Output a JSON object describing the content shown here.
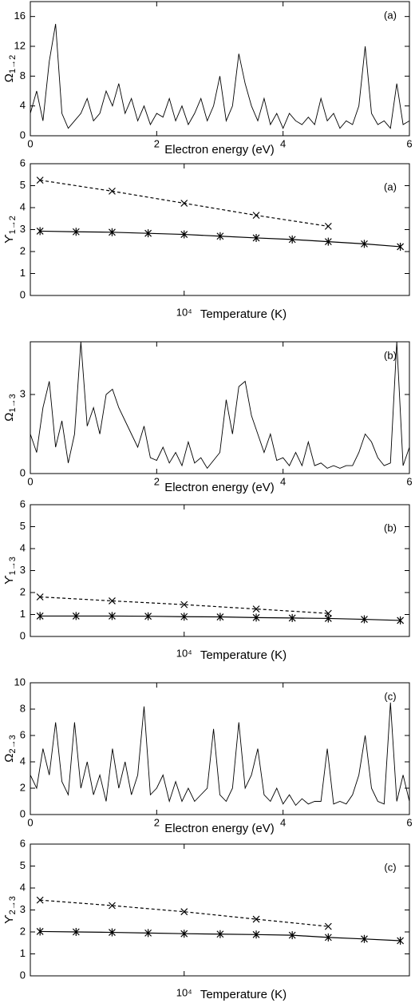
{
  "chart_data": [
    {
      "type": "line",
      "panel_label": "(a)",
      "ylabel": {
        "symbol": "Ω",
        "subscript": "1→2"
      },
      "xlabel": "Electron energy (eV)",
      "xlim": [
        0,
        6
      ],
      "xticks": [
        0,
        2,
        4,
        6
      ],
      "ylim": [
        0,
        18
      ],
      "yticks": [
        0,
        4,
        8,
        12,
        16
      ],
      "log_x": false,
      "x": [
        0,
        0.1,
        0.2,
        0.3,
        0.4,
        0.5,
        0.6,
        0.7,
        0.8,
        0.9,
        1,
        1.1,
        1.2,
        1.3,
        1.4,
        1.5,
        1.6,
        1.7,
        1.8,
        1.9,
        2,
        2.1,
        2.2,
        2.3,
        2.4,
        2.5,
        2.6,
        2.7,
        2.8,
        2.9,
        3,
        3.1,
        3.2,
        3.3,
        3.4,
        3.5,
        3.6,
        3.7,
        3.8,
        3.9,
        4,
        4.1,
        4.2,
        4.3,
        4.4,
        4.5,
        4.6,
        4.7,
        4.8,
        4.9,
        5,
        5.1,
        5.2,
        5.3,
        5.4,
        5.5,
        5.6,
        5.7,
        5.8,
        5.9,
        6
      ],
      "series": [
        {
          "color": "#000000",
          "dash": false,
          "marker": "none",
          "values": [
            3,
            6,
            2,
            10,
            15,
            3,
            1,
            2,
            3,
            5,
            2,
            3,
            6,
            4,
            7,
            3,
            5,
            2,
            4,
            1.5,
            3,
            2.5,
            5,
            2,
            4,
            1.5,
            3,
            5,
            2,
            4,
            8,
            2,
            4,
            11,
            7,
            4,
            2,
            5,
            1.5,
            3,
            1,
            3,
            2,
            1.5,
            2.5,
            1.5,
            5,
            2,
            3,
            1,
            2,
            1.5,
            4,
            12,
            3,
            1.5,
            2,
            1,
            7,
            1.5,
            2
          ]
        }
      ]
    },
    {
      "type": "line",
      "panel_label": "(a)",
      "ylabel": {
        "symbol": "ϒ",
        "subscript": "1→2"
      },
      "xlabel": "Temperature (K)",
      "xlim": [
        1400,
        178000
      ],
      "xticks": [
        {
          "value": 10000,
          "label": "10⁴"
        }
      ],
      "ylim": [
        0,
        6
      ],
      "yticks": [
        0,
        1,
        2,
        3,
        4,
        5,
        6
      ],
      "log_x": true,
      "series": [
        {
          "color": "#000000",
          "dash": true,
          "marker": "x",
          "x": [
            1585,
            3981,
            10000,
            25120,
            63100
          ],
          "values": [
            5.25,
            4.75,
            4.2,
            3.65,
            3.15
          ]
        },
        {
          "color": "#000000",
          "dash": false,
          "marker": "star",
          "x": [
            1585,
            2512,
            3981,
            6310,
            10000,
            15850,
            25120,
            39810,
            63100,
            100000,
            158500
          ],
          "values": [
            2.93,
            2.9,
            2.88,
            2.83,
            2.78,
            2.7,
            2.62,
            2.55,
            2.45,
            2.35,
            2.22
          ]
        }
      ]
    },
    {
      "type": "line",
      "panel_label": "(b)",
      "ylabel": {
        "symbol": "Ω",
        "subscript": "1→3"
      },
      "xlabel": "Electron energy (eV)",
      "xlim": [
        0,
        6
      ],
      "xticks": [
        0,
        2,
        4,
        6
      ],
      "ylim": [
        0,
        5
      ],
      "yticks": [
        0,
        3
      ],
      "log_x": false,
      "x": [
        0,
        0.1,
        0.2,
        0.3,
        0.4,
        0.5,
        0.6,
        0.7,
        0.8,
        0.9,
        1,
        1.1,
        1.2,
        1.3,
        1.4,
        1.5,
        1.6,
        1.7,
        1.8,
        1.9,
        2,
        2.1,
        2.2,
        2.3,
        2.4,
        2.5,
        2.6,
        2.7,
        2.8,
        2.9,
        3,
        3.1,
        3.2,
        3.3,
        3.4,
        3.5,
        3.6,
        3.7,
        3.8,
        3.9,
        4,
        4.1,
        4.2,
        4.3,
        4.4,
        4.5,
        4.6,
        4.7,
        4.8,
        4.9,
        5,
        5.1,
        5.2,
        5.3,
        5.4,
        5.5,
        5.6,
        5.7,
        5.8,
        5.9,
        6
      ],
      "series": [
        {
          "color": "#000000",
          "dash": false,
          "marker": "none",
          "values": [
            1.5,
            0.8,
            2.5,
            3.5,
            1,
            2,
            0.4,
            1.5,
            5,
            1.8,
            2.5,
            1.5,
            3,
            3.2,
            2.5,
            2,
            1.5,
            1,
            1.8,
            0.6,
            0.5,
            1,
            0.4,
            0.8,
            0.3,
            1.2,
            0.4,
            0.6,
            0.2,
            0.5,
            0.8,
            2.8,
            1.5,
            3.3,
            3.5,
            2.2,
            1.5,
            0.8,
            1.5,
            0.5,
            0.6,
            0.3,
            0.8,
            0.3,
            1.2,
            0.3,
            0.4,
            0.2,
            0.3,
            0.2,
            0.3,
            0.3,
            0.8,
            1.5,
            1.2,
            0.6,
            0.3,
            0.4,
            5,
            0.3,
            1
          ]
        }
      ]
    },
    {
      "type": "line",
      "panel_label": "(b)",
      "ylabel": {
        "symbol": "ϒ",
        "subscript": "1→3"
      },
      "xlabel": "Temperature (K)",
      "xlim": [
        1400,
        178000
      ],
      "xticks": [
        {
          "value": 10000,
          "label": "10⁴"
        }
      ],
      "ylim": [
        0,
        6
      ],
      "yticks": [
        0,
        1,
        2,
        3,
        4,
        5,
        6
      ],
      "log_x": true,
      "series": [
        {
          "color": "#000000",
          "dash": true,
          "marker": "x",
          "x": [
            1585,
            3981,
            10000,
            25120,
            63100
          ],
          "values": [
            1.8,
            1.62,
            1.45,
            1.25,
            1.05
          ]
        },
        {
          "color": "#000000",
          "dash": false,
          "marker": "star",
          "x": [
            1585,
            2512,
            3981,
            6310,
            10000,
            15850,
            25120,
            39810,
            63100,
            100000,
            158500
          ],
          "values": [
            0.93,
            0.93,
            0.93,
            0.92,
            0.9,
            0.89,
            0.86,
            0.84,
            0.82,
            0.78,
            0.73
          ]
        }
      ]
    },
    {
      "type": "line",
      "panel_label": "(c)",
      "ylabel": {
        "symbol": "Ω",
        "subscript": "2→3"
      },
      "xlabel": "Electron energy (eV)",
      "xlim": [
        0,
        6
      ],
      "xticks": [
        0,
        2,
        4,
        6
      ],
      "ylim": [
        0,
        10
      ],
      "yticks": [
        0,
        2,
        4,
        6,
        8,
        10
      ],
      "log_x": false,
      "x": [
        0,
        0.1,
        0.2,
        0.3,
        0.4,
        0.5,
        0.6,
        0.7,
        0.8,
        0.9,
        1,
        1.1,
        1.2,
        1.3,
        1.4,
        1.5,
        1.6,
        1.7,
        1.8,
        1.9,
        2,
        2.1,
        2.2,
        2.3,
        2.4,
        2.5,
        2.6,
        2.7,
        2.8,
        2.9,
        3,
        3.1,
        3.2,
        3.3,
        3.4,
        3.5,
        3.6,
        3.7,
        3.8,
        3.9,
        4,
        4.1,
        4.2,
        4.3,
        4.4,
        4.5,
        4.6,
        4.7,
        4.8,
        4.9,
        5,
        5.1,
        5.2,
        5.3,
        5.4,
        5.5,
        5.6,
        5.7,
        5.8,
        5.9,
        6
      ],
      "series": [
        {
          "color": "#000000",
          "dash": false,
          "marker": "none",
          "values": [
            3,
            2,
            5,
            3,
            7,
            2.5,
            1.5,
            7,
            2,
            4,
            1.5,
            3,
            1,
            5,
            2,
            4,
            1.5,
            3,
            8.2,
            1.5,
            2,
            3,
            1,
            2.5,
            1,
            2,
            1,
            1.5,
            2,
            6.5,
            1.5,
            1,
            2,
            7,
            2,
            3,
            5,
            1.5,
            1,
            2,
            0.8,
            1.5,
            0.7,
            1.2,
            0.8,
            1,
            1,
            5,
            0.8,
            1,
            0.8,
            1.5,
            3,
            6,
            2,
            1,
            0.8,
            8.5,
            1,
            3,
            1
          ]
        }
      ]
    },
    {
      "type": "line",
      "panel_label": "(c)",
      "ylabel": {
        "symbol": "ϒ",
        "subscript": "2→3"
      },
      "xlabel": "Temperature (K)",
      "xlim": [
        1400,
        178000
      ],
      "xticks": [
        {
          "value": 10000,
          "label": "10⁴"
        }
      ],
      "ylim": [
        0,
        6
      ],
      "yticks": [
        0,
        1,
        2,
        3,
        4,
        5,
        6
      ],
      "log_x": true,
      "series": [
        {
          "color": "#000000",
          "dash": true,
          "marker": "x",
          "x": [
            1585,
            3981,
            10000,
            25120,
            63100
          ],
          "values": [
            3.45,
            3.2,
            2.92,
            2.58,
            2.25
          ]
        },
        {
          "color": "#000000",
          "dash": false,
          "marker": "star",
          "x": [
            1585,
            2512,
            3981,
            6310,
            10000,
            15850,
            25120,
            39810,
            63100,
            100000,
            158500
          ],
          "values": [
            2.02,
            2.0,
            1.98,
            1.95,
            1.92,
            1.9,
            1.88,
            1.85,
            1.75,
            1.68,
            1.6
          ]
        }
      ]
    }
  ]
}
